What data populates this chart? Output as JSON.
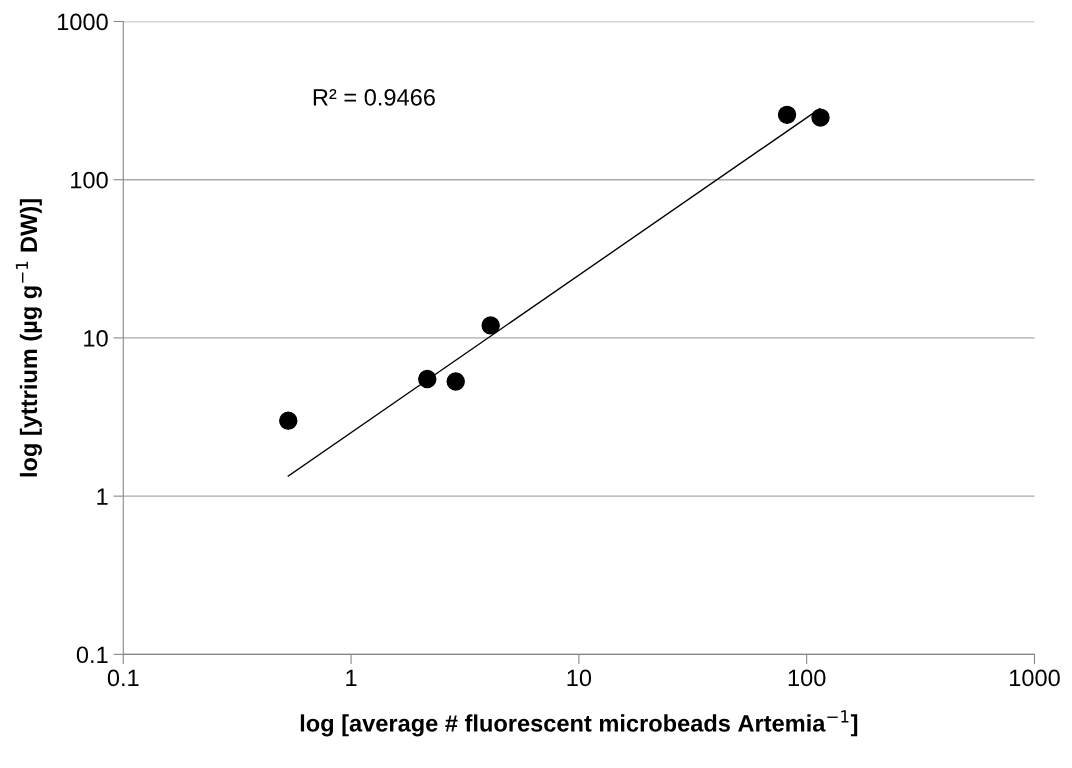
{
  "chart_data": {
    "type": "scatter",
    "xlabel": "log [average # fluorescent microbeads Artemia$^{−1}$]",
    "ylabel": "log [yttrium (µg g$^{−1}$ DW)]",
    "log": "xy",
    "xlim": [
      0.1,
      1000
    ],
    "ylim": [
      0.1,
      1000
    ],
    "xticks": [
      0.1,
      1,
      10,
      100,
      1000
    ],
    "yticks": [
      0.1,
      1,
      10,
      100,
      1000
    ],
    "grid": "y",
    "legend": false,
    "marker": "circle",
    "series": [
      {
        "color": "#000000",
        "x": [
          0.53,
          2.16,
          2.88,
          4.1,
          82,
          115
        ],
        "values": [
          3.0,
          5.5,
          5.3,
          12,
          257,
          247
        ]
      },
      {
        "type": "line",
        "color": "#000000",
        "x": [
          0.53,
          114
        ],
        "values": [
          1.34,
          281
        ],
        "marker": "none",
        "line_style": "solid"
      }
    ],
    "annotations": [
      "R² = 0.9466"
    ]
  }
}
